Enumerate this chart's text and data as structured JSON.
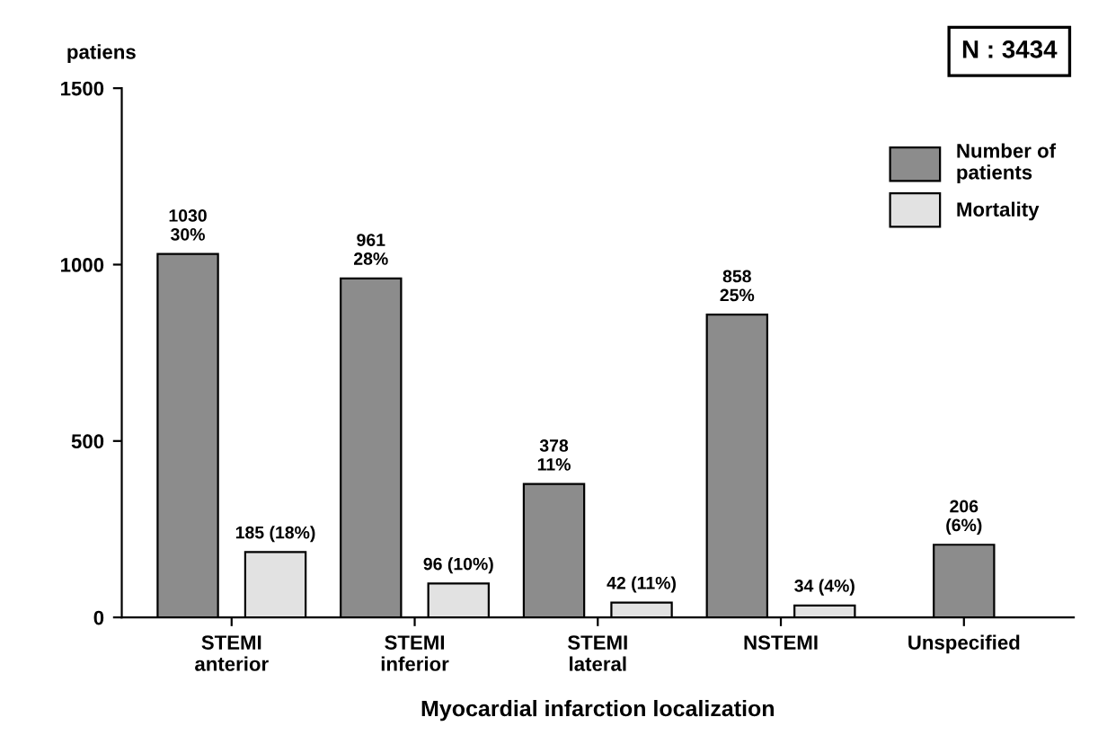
{
  "chart_data": {
    "type": "bar",
    "categories": [
      "STEMI\nanterior",
      "STEMI\ninferior",
      "STEMI\nlateral",
      "NSTEMI",
      "Unspecified"
    ],
    "series": [
      {
        "name": "Number of\npatients",
        "color": "#8c8c8c",
        "values": [
          1030,
          961,
          378,
          858,
          206
        ],
        "value_labels": [
          "1030\n30%",
          "961\n28%",
          "378\n11%",
          "858\n25%",
          "206\n(6%)"
        ]
      },
      {
        "name": "Mortality",
        "color": "#e2e2e2",
        "values": [
          185,
          96,
          42,
          34,
          null
        ],
        "value_labels": [
          "185 (18%)",
          "96 (10%)",
          "42 (11%)",
          "34 (4%)",
          null
        ]
      }
    ],
    "ylabel": "patiens",
    "xlabel": "Myocardial infarction localization",
    "ylim": [
      0,
      1500
    ],
    "yticks": [
      0,
      500,
      1000,
      1500
    ],
    "annotations": [
      "N : 3434"
    ],
    "legend": "top right",
    "grid": false
  }
}
